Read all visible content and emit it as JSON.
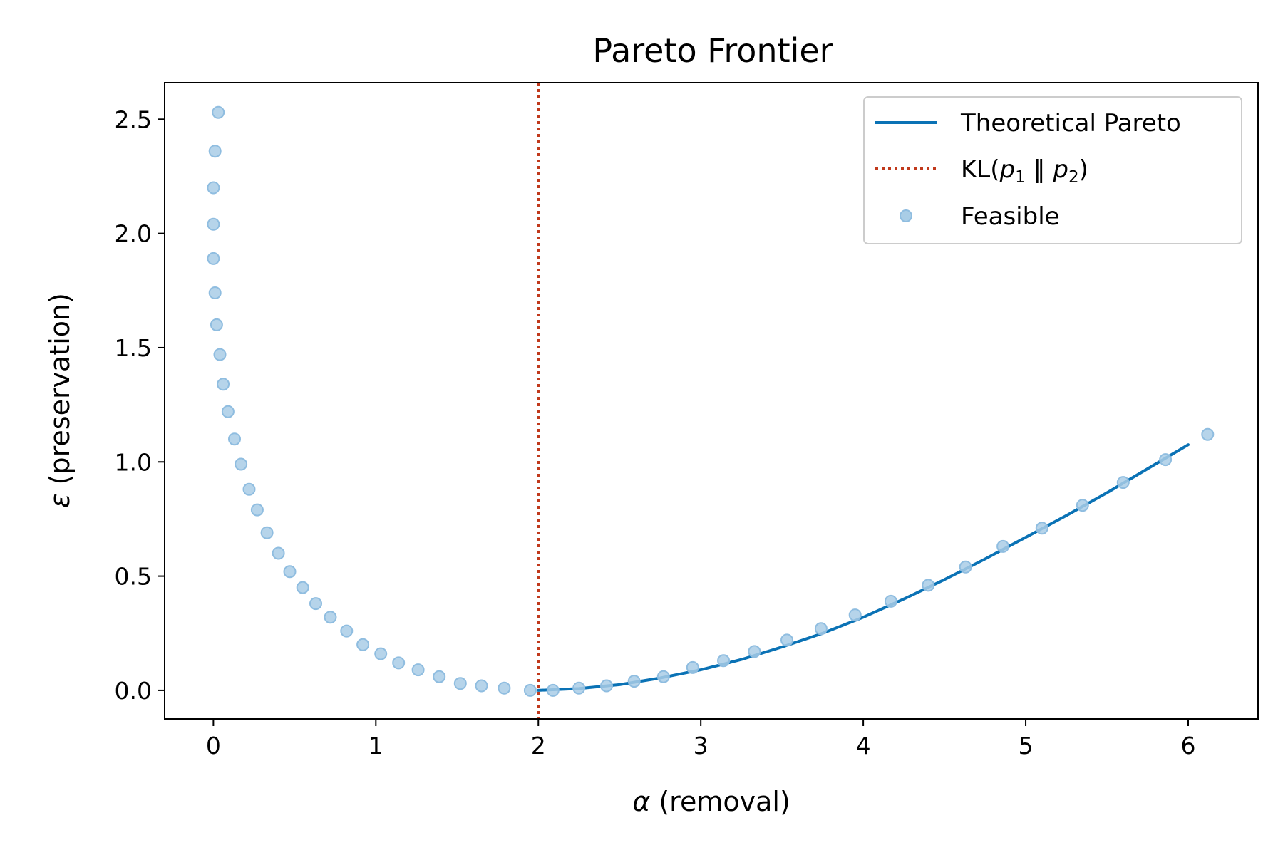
{
  "chart_data": {
    "type": "scatter",
    "title": "Pareto Frontier",
    "xlabel_var": "α",
    "xlabel_text": " (removal)",
    "ylabel_var": "ε",
    "ylabel_text": " (preservation)",
    "xlim": [
      -0.3,
      6.43
    ],
    "ylim": [
      -0.125,
      2.66
    ],
    "xticks": [
      0,
      1,
      2,
      3,
      4,
      5,
      6
    ],
    "xtick_labels": [
      "0",
      "1",
      "2",
      "3",
      "4",
      "5",
      "6"
    ],
    "yticks": [
      0.0,
      0.5,
      1.0,
      1.5,
      2.0,
      2.5
    ],
    "ytick_labels": [
      "0.0",
      "0.5",
      "1.0",
      "1.5",
      "2.0",
      "2.5"
    ],
    "grid": false,
    "legend_position": "top-right",
    "colors": {
      "pareto_line": "#0a72b5",
      "kl_line": "#c1391c",
      "feasible_fill": "#a9cde6",
      "feasible_edge": "#8fbde0"
    },
    "legend": [
      {
        "label": "Theoretical Pareto",
        "kind": "line"
      },
      {
        "label_pre": "KL(",
        "label_p1": "p",
        "label_sub1": "1",
        "label_mid": " ‖ ",
        "label_p2": "p",
        "label_sub2": "2",
        "label_post": ")",
        "kind": "dotted"
      },
      {
        "label": "Feasible",
        "kind": "marker"
      }
    ],
    "vline": {
      "name": "KL(p1 ‖ p2)",
      "x": 2.0
    },
    "series": [
      {
        "name": "Theoretical Pareto",
        "kind": "line",
        "x": [
          2.0,
          2.25,
          2.5,
          2.75,
          3.0,
          3.25,
          3.5,
          3.75,
          4.0,
          4.25,
          4.5,
          4.75,
          5.0,
          5.25,
          5.5,
          5.75,
          6.0
        ],
        "y": [
          0.0,
          0.008,
          0.025,
          0.054,
          0.09,
          0.135,
          0.19,
          0.25,
          0.32,
          0.4,
          0.485,
          0.575,
          0.67,
          0.765,
          0.865,
          0.97,
          1.075
        ]
      },
      {
        "name": "Feasible",
        "kind": "scatter",
        "x": [
          0.03,
          0.01,
          0.0,
          0.0,
          0.0,
          0.01,
          0.02,
          0.04,
          0.06,
          0.09,
          0.13,
          0.17,
          0.22,
          0.27,
          0.33,
          0.4,
          0.47,
          0.55,
          0.63,
          0.72,
          0.82,
          0.92,
          1.03,
          1.14,
          1.26,
          1.39,
          1.52,
          1.65,
          1.79,
          1.95,
          2.09,
          2.25,
          2.42,
          2.59,
          2.77,
          2.95,
          3.14,
          3.33,
          3.53,
          3.74,
          3.95,
          4.17,
          4.4,
          4.63,
          4.86,
          5.1,
          5.35,
          5.6,
          5.86,
          6.12
        ],
        "y": [
          2.53,
          2.36,
          2.2,
          2.04,
          1.89,
          1.74,
          1.6,
          1.47,
          1.34,
          1.22,
          1.1,
          0.99,
          0.88,
          0.79,
          0.69,
          0.6,
          0.52,
          0.45,
          0.38,
          0.32,
          0.26,
          0.2,
          0.16,
          0.12,
          0.09,
          0.06,
          0.03,
          0.02,
          0.01,
          0.0,
          0.0,
          0.01,
          0.02,
          0.04,
          0.06,
          0.1,
          0.13,
          0.17,
          0.22,
          0.27,
          0.33,
          0.39,
          0.46,
          0.54,
          0.63,
          0.71,
          0.81,
          0.91,
          1.01,
          1.12
        ]
      }
    ]
  }
}
